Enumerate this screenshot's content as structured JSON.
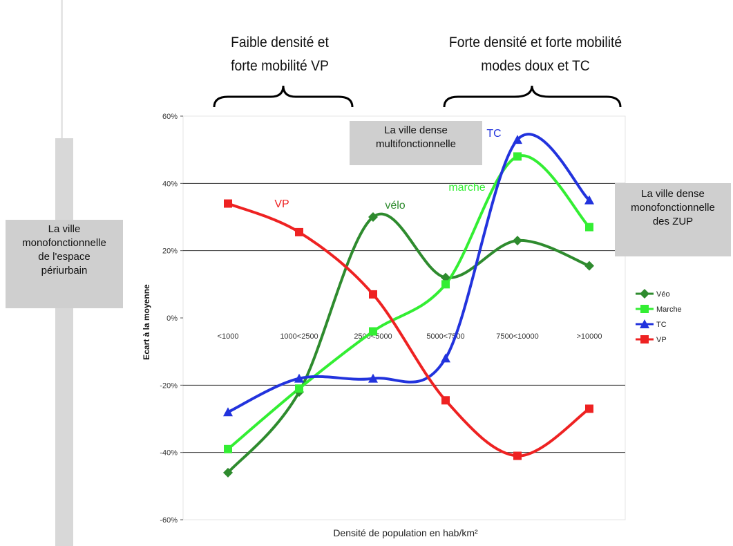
{
  "headings": {
    "left": [
      "Faible densité et",
      "forte mobilité VP"
    ],
    "right": [
      "Forte densité et forte mobilité",
      "modes doux et TC"
    ]
  },
  "boxes": {
    "periurbain": [
      "La ville",
      "monofonctionnelle",
      "de l'espace",
      "périurbain"
    ],
    "dense_multi": [
      "La ville dense",
      "multifonctionnelle"
    ],
    "dense_zup": [
      "La ville dense",
      "monofonctionnelle",
      "des ZUP"
    ]
  },
  "chart_data": {
    "type": "line",
    "xlabel": "Densité de population en hab/km²",
    "ylabel": "Ecart à la moyenne",
    "categories": [
      "<1000",
      "1000<2500",
      "2500<5000",
      "5000<7500",
      "7500<10000",
      ">10000"
    ],
    "ylim": [
      -60,
      60
    ],
    "yticks": [
      -60,
      -40,
      -20,
      0,
      20,
      40,
      60
    ],
    "ytick_labels": [
      "-60%",
      "-40%",
      "-20%",
      "0%",
      "20%",
      "40%",
      "60%"
    ],
    "grid": true,
    "legend_position": "right",
    "series": [
      {
        "name": "Véo",
        "label": "vélo",
        "color": "#2e8b2e",
        "marker": "diamond",
        "values": [
          -46,
          -22,
          30,
          12,
          23,
          15.5
        ]
      },
      {
        "name": "Marche",
        "label": "marche",
        "color": "#33ee33",
        "marker": "square",
        "values": [
          -39,
          -21,
          -4,
          10,
          48,
          27
        ]
      },
      {
        "name": "TC",
        "label": "TC",
        "color": "#2233dd",
        "marker": "triangle",
        "values": [
          -28,
          -18,
          -18,
          -12,
          53,
          35
        ]
      },
      {
        "name": "VP",
        "label": "VP",
        "color": "#ee2222",
        "marker": "square",
        "values": [
          34,
          25.5,
          7,
          -24.5,
          -41,
          -27
        ]
      }
    ]
  }
}
